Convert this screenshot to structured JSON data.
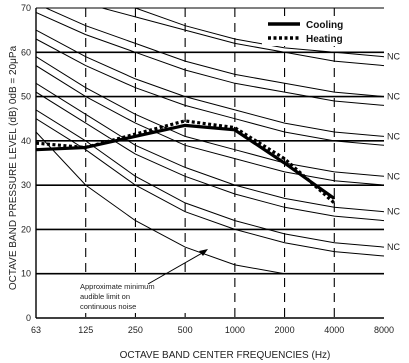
{
  "chart_data": {
    "type": "line",
    "xlabel": "OCTAVE BAND CENTER FREQUENCIES (Hz)",
    "ylabel": "OCTAVE BAND PRESSURE LEVEL (dB) 0dB = 20μPa",
    "categories": [
      "63",
      "125",
      "250",
      "500",
      "1000",
      "2000",
      "4000",
      "8000"
    ],
    "y_ticks": [
      "0",
      "10",
      "20",
      "30",
      "40",
      "50",
      "60",
      "70"
    ],
    "ylim": [
      0,
      70
    ],
    "grid": true,
    "legend_position": "top-right",
    "series": [
      {
        "name": "Cooling",
        "style": "solid",
        "color": "#000000",
        "x": [
          63,
          125,
          250,
          500,
          1000,
          2000,
          4000
        ],
        "values": [
          38,
          38.5,
          41,
          43.5,
          42.5,
          35,
          27
        ]
      },
      {
        "name": "Heating",
        "style": "dotted",
        "color": "#000000",
        "x": [
          63,
          125,
          250,
          500,
          1000,
          2000,
          4000
        ],
        "values": [
          39.5,
          38.5,
          41.5,
          44.5,
          43,
          36,
          26
        ]
      }
    ],
    "nc_curves": [
      {
        "label": "NC",
        "values": [
          77,
          73,
          70,
          66,
          63,
          61,
          60,
          59
        ]
      },
      {
        "label": "NC",
        "values": [
          71,
          66,
          62,
          58,
          55,
          53,
          51,
          50
        ]
      },
      {
        "label": "NC",
        "values": [
          65,
          59,
          54,
          50,
          47,
          44,
          42,
          41
        ]
      },
      {
        "label": "NC",
        "values": [
          59,
          52,
          46,
          41,
          38,
          35,
          33,
          32
        ]
      },
      {
        "label": "NC",
        "values": [
          53,
          46,
          39,
          34,
          30,
          27,
          25,
          24
        ]
      },
      {
        "label": "NC",
        "values": [
          47,
          40,
          32,
          26,
          22,
          19,
          17,
          16
        ]
      }
    ],
    "extra_curves": [
      {
        "values": [
          75,
          71,
          68,
          65,
          62,
          60,
          58,
          57
        ]
      },
      {
        "values": [
          69,
          64,
          60,
          56,
          53,
          51,
          49,
          48
        ]
      },
      {
        "values": [
          63,
          57,
          52,
          48,
          45,
          42,
          40,
          39
        ]
      },
      {
        "values": [
          57,
          50,
          44,
          39,
          36,
          33,
          31,
          30
        ]
      },
      {
        "values": [
          51,
          44,
          37,
          32,
          28,
          25,
          23,
          22
        ]
      },
      {
        "values": [
          45,
          38,
          30,
          24,
          20,
          17,
          15,
          14
        ]
      }
    ],
    "audible_limit": {
      "values": [
        42,
        30,
        22,
        16,
        12,
        10,
        10,
        10
      ]
    },
    "annotation": {
      "lines": [
        "Approximate minimum",
        "audible limit on",
        "continuous noise"
      ]
    }
  }
}
